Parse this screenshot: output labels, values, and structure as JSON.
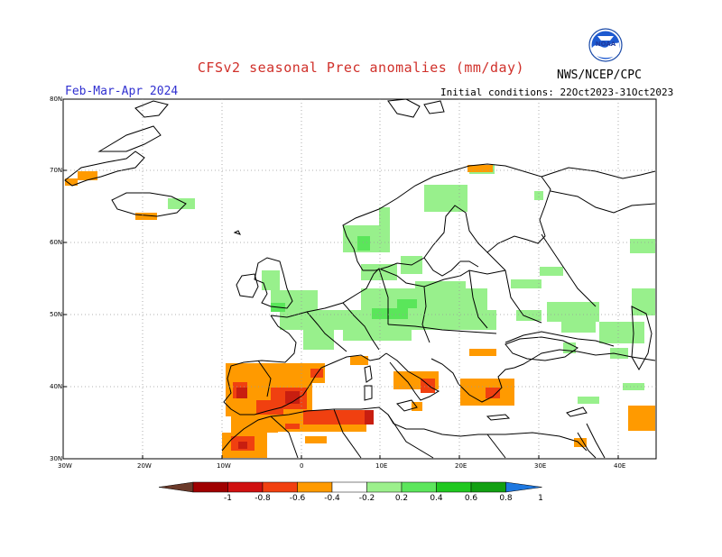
{
  "header": {
    "title": "CFSv2 seasonal Prec anomalies (mm/day)",
    "period": "Feb-Mar-Apr 2024",
    "initial_conditions": "Initial conditions: 22Oct2023-31Oct2023",
    "org_label": "NWS/NCEP/CPC",
    "logo_text": "NOAA"
  },
  "axes": {
    "lat_labels": [
      "80N",
      "70N",
      "60N",
      "50N",
      "40N",
      "30N"
    ],
    "lon_labels": [
      "30W",
      "20W",
      "10W",
      "0",
      "10E",
      "20E",
      "30E",
      "40E"
    ]
  },
  "colorbar": {
    "labels": [
      "-1",
      "-0.8",
      "-0.6",
      "-0.4",
      "-0.2",
      "0.2",
      "0.4",
      "0.6",
      "0.8",
      "1"
    ],
    "colors": [
      "#6b3a2a",
      "#a00000",
      "#d01010",
      "#f24010",
      "#ff9a00",
      "#ffffff",
      "#9cf08c",
      "#5ce65c",
      "#20c820",
      "#12a012",
      "#1e78e0"
    ]
  },
  "colors": {
    "lightgreen": "#98f08c",
    "green": "#5ae65a",
    "orange": "#ff9a00",
    "red": "#f04010",
    "darkred": "#c81e10",
    "coast": "#000000",
    "grid": "#999999"
  }
}
